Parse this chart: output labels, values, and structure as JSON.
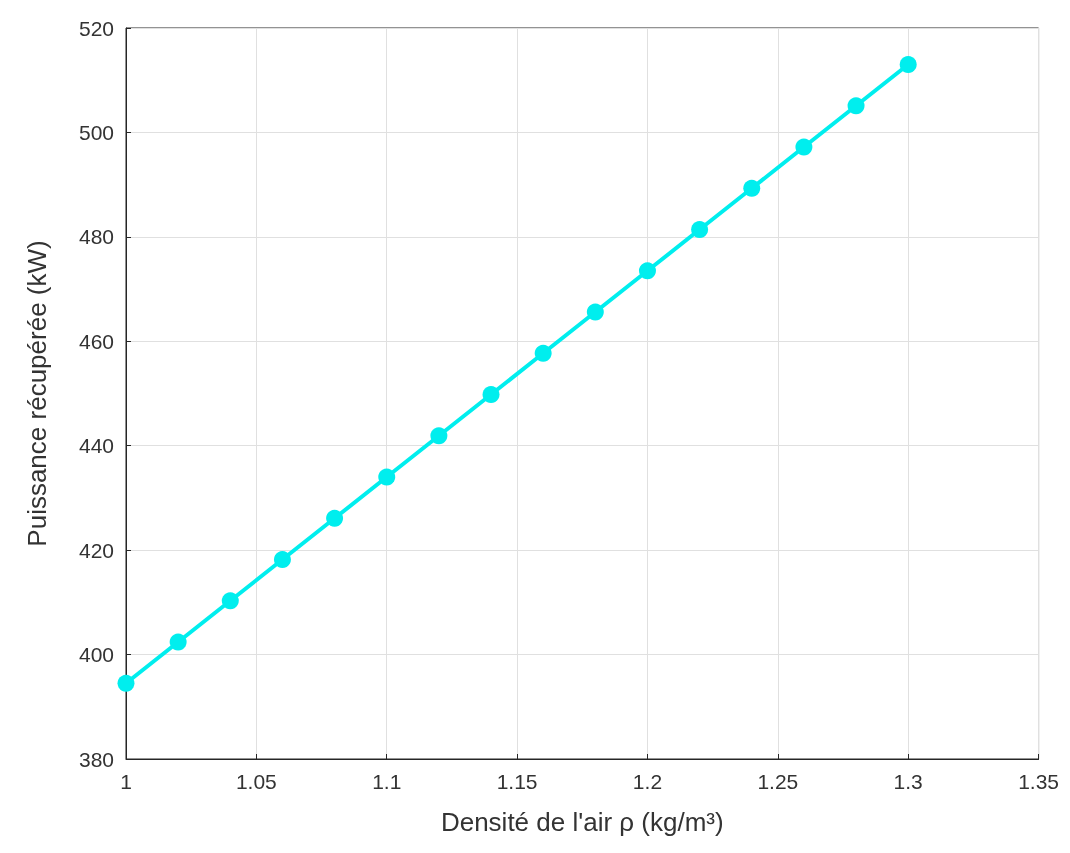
{
  "chart_data": {
    "type": "line",
    "xlabel": "Densité de l'air ρ (kg/m³)",
    "ylabel": "Puissance récupérée (kW)",
    "x": [
      1,
      1.02,
      1.04,
      1.06,
      1.08,
      1.1,
      1.12,
      1.14,
      1.16,
      1.18,
      1.2,
      1.22,
      1.24,
      1.26,
      1.28,
      1.3
    ],
    "series": [
      {
        "color": "#00eeee",
        "values": [
          394.5,
          402.4,
          410.3,
          418.2,
          426.1,
          434.0,
          441.9,
          449.8,
          457.7,
          465.6,
          473.5,
          481.4,
          489.3,
          497.2,
          505.1,
          513.0
        ]
      }
    ],
    "xlim": [
      1,
      1.35
    ],
    "xticks": [
      1,
      1.05,
      1.1,
      1.15,
      1.2,
      1.25,
      1.3,
      1.35
    ],
    "ylim": [
      380,
      520
    ],
    "yticks": [
      380,
      400,
      420,
      440,
      460,
      480,
      500,
      520
    ],
    "grid": true,
    "marker": "circle",
    "line_style": "solid"
  }
}
